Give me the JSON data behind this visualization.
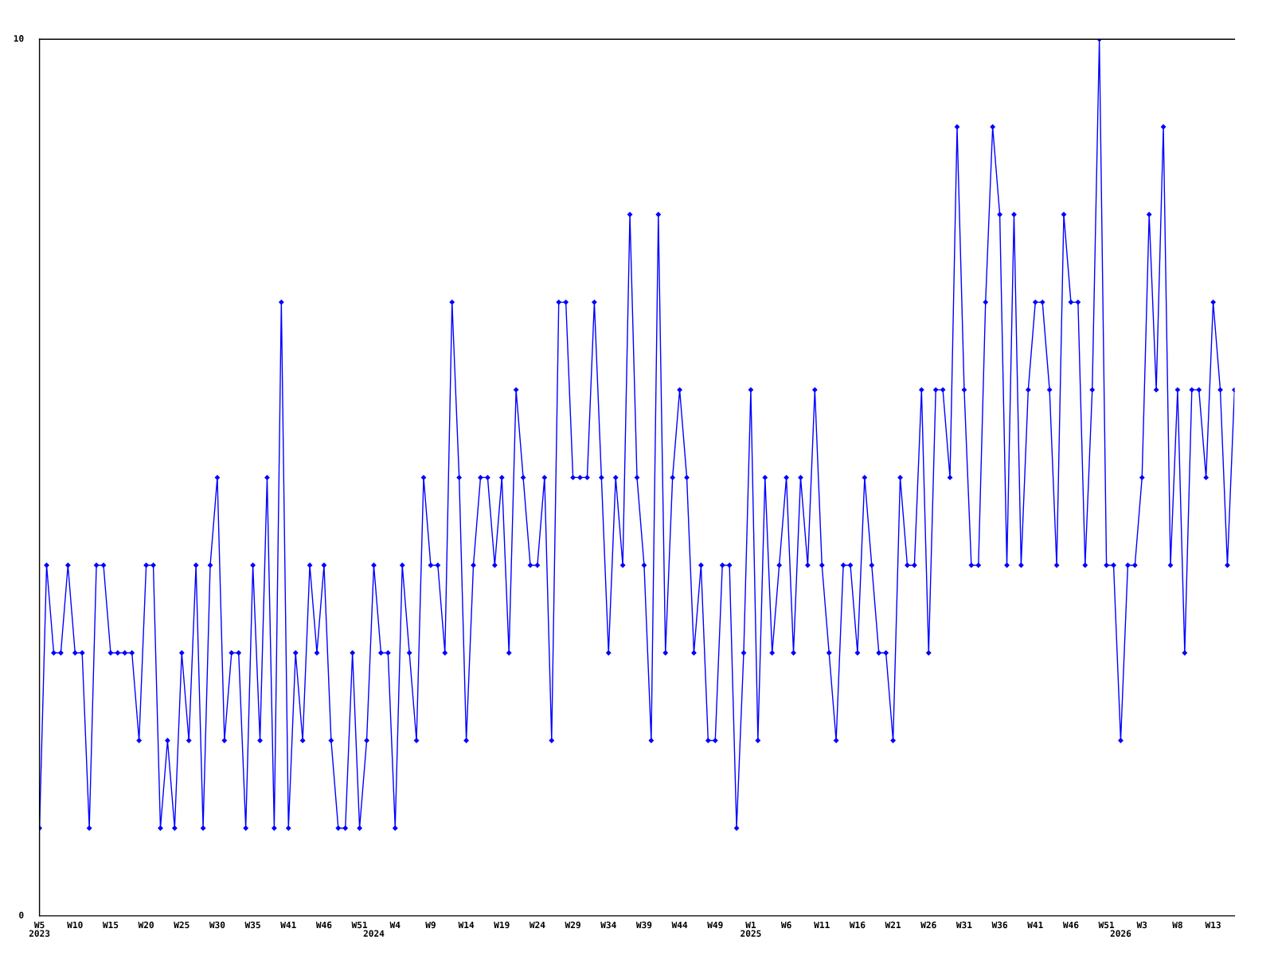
{
  "chart_data": {
    "type": "line",
    "categories": [
      "W5\n2023",
      null,
      null,
      null,
      null,
      "W10",
      null,
      null,
      null,
      null,
      "W15",
      null,
      null,
      null,
      null,
      "W20",
      null,
      null,
      null,
      null,
      "W25",
      null,
      null,
      null,
      null,
      "W30",
      null,
      null,
      null,
      null,
      "W35",
      null,
      null,
      null,
      null,
      "W41",
      null,
      null,
      null,
      null,
      "W46",
      null,
      null,
      null,
      null,
      "W51",
      null,
      "\n2024",
      null,
      null,
      "W4",
      null,
      null,
      null,
      null,
      "W9",
      null,
      null,
      null,
      null,
      "W14",
      null,
      null,
      null,
      null,
      "W19",
      null,
      null,
      null,
      null,
      "W24",
      null,
      null,
      null,
      null,
      "W29",
      null,
      null,
      null,
      null,
      "W34",
      null,
      null,
      null,
      null,
      "W39",
      null,
      null,
      null,
      null,
      "W44",
      null,
      null,
      null,
      null,
      "W49",
      null,
      null,
      null,
      null,
      "W1\n2025",
      null,
      null,
      null,
      null,
      "W6",
      null,
      null,
      null,
      null,
      "W11",
      null,
      null,
      null,
      null,
      "W16",
      null,
      null,
      null,
      null,
      "W21",
      null,
      null,
      null,
      null,
      "W26",
      null,
      null,
      null,
      null,
      "W31",
      null,
      null,
      null,
      null,
      "W36",
      null,
      null,
      null,
      null,
      "W41",
      null,
      null,
      null,
      null,
      "W46",
      null,
      null,
      null,
      null,
      "W51",
      null,
      "\n2026",
      null,
      null,
      "W3",
      null,
      null,
      null,
      null,
      "W8",
      null,
      null,
      null,
      null,
      "W13",
      null,
      null,
      null
    ],
    "series": [
      {
        "color": "#0000ff",
        "values": [
          1,
          4,
          3,
          3,
          4,
          3,
          3,
          1,
          4,
          4,
          3,
          3,
          3,
          3,
          2,
          4,
          4,
          1,
          2,
          1,
          3,
          2,
          4,
          1,
          4,
          5,
          2,
          3,
          3,
          1,
          4,
          2,
          5,
          1,
          7,
          1,
          3,
          2,
          4,
          3,
          4,
          2,
          1,
          1,
          3,
          1,
          2,
          4,
          3,
          3,
          1,
          4,
          3,
          2,
          5,
          4,
          4,
          3,
          7,
          5,
          2,
          4,
          5,
          5,
          4,
          5,
          3,
          6,
          5,
          4,
          4,
          5,
          2,
          7,
          7,
          5,
          5,
          5,
          7,
          5,
          3,
          5,
          4,
          8,
          5,
          4,
          2,
          8,
          3,
          5,
          6,
          5,
          3,
          4,
          2,
          2,
          4,
          4,
          1,
          3,
          6,
          2,
          5,
          3,
          4,
          5,
          3,
          5,
          4,
          6,
          4,
          3,
          2,
          4,
          4,
          3,
          5,
          4,
          3,
          3,
          2,
          5,
          4,
          4,
          6,
          3,
          6,
          6,
          5,
          9,
          6,
          4,
          4,
          7,
          9,
          8,
          4,
          8,
          4,
          6,
          7,
          7,
          6,
          4,
          8,
          7,
          7,
          4,
          6,
          10,
          4,
          4,
          2,
          4,
          4,
          5,
          8,
          6,
          9,
          4,
          6,
          3,
          6,
          6,
          5,
          7,
          6,
          4,
          6
        ]
      }
    ],
    "ylim": [
      0,
      10
    ],
    "yticks": [
      0,
      10
    ],
    "grid": false,
    "legend": false,
    "marker": "diamond",
    "line_style": "solid"
  }
}
